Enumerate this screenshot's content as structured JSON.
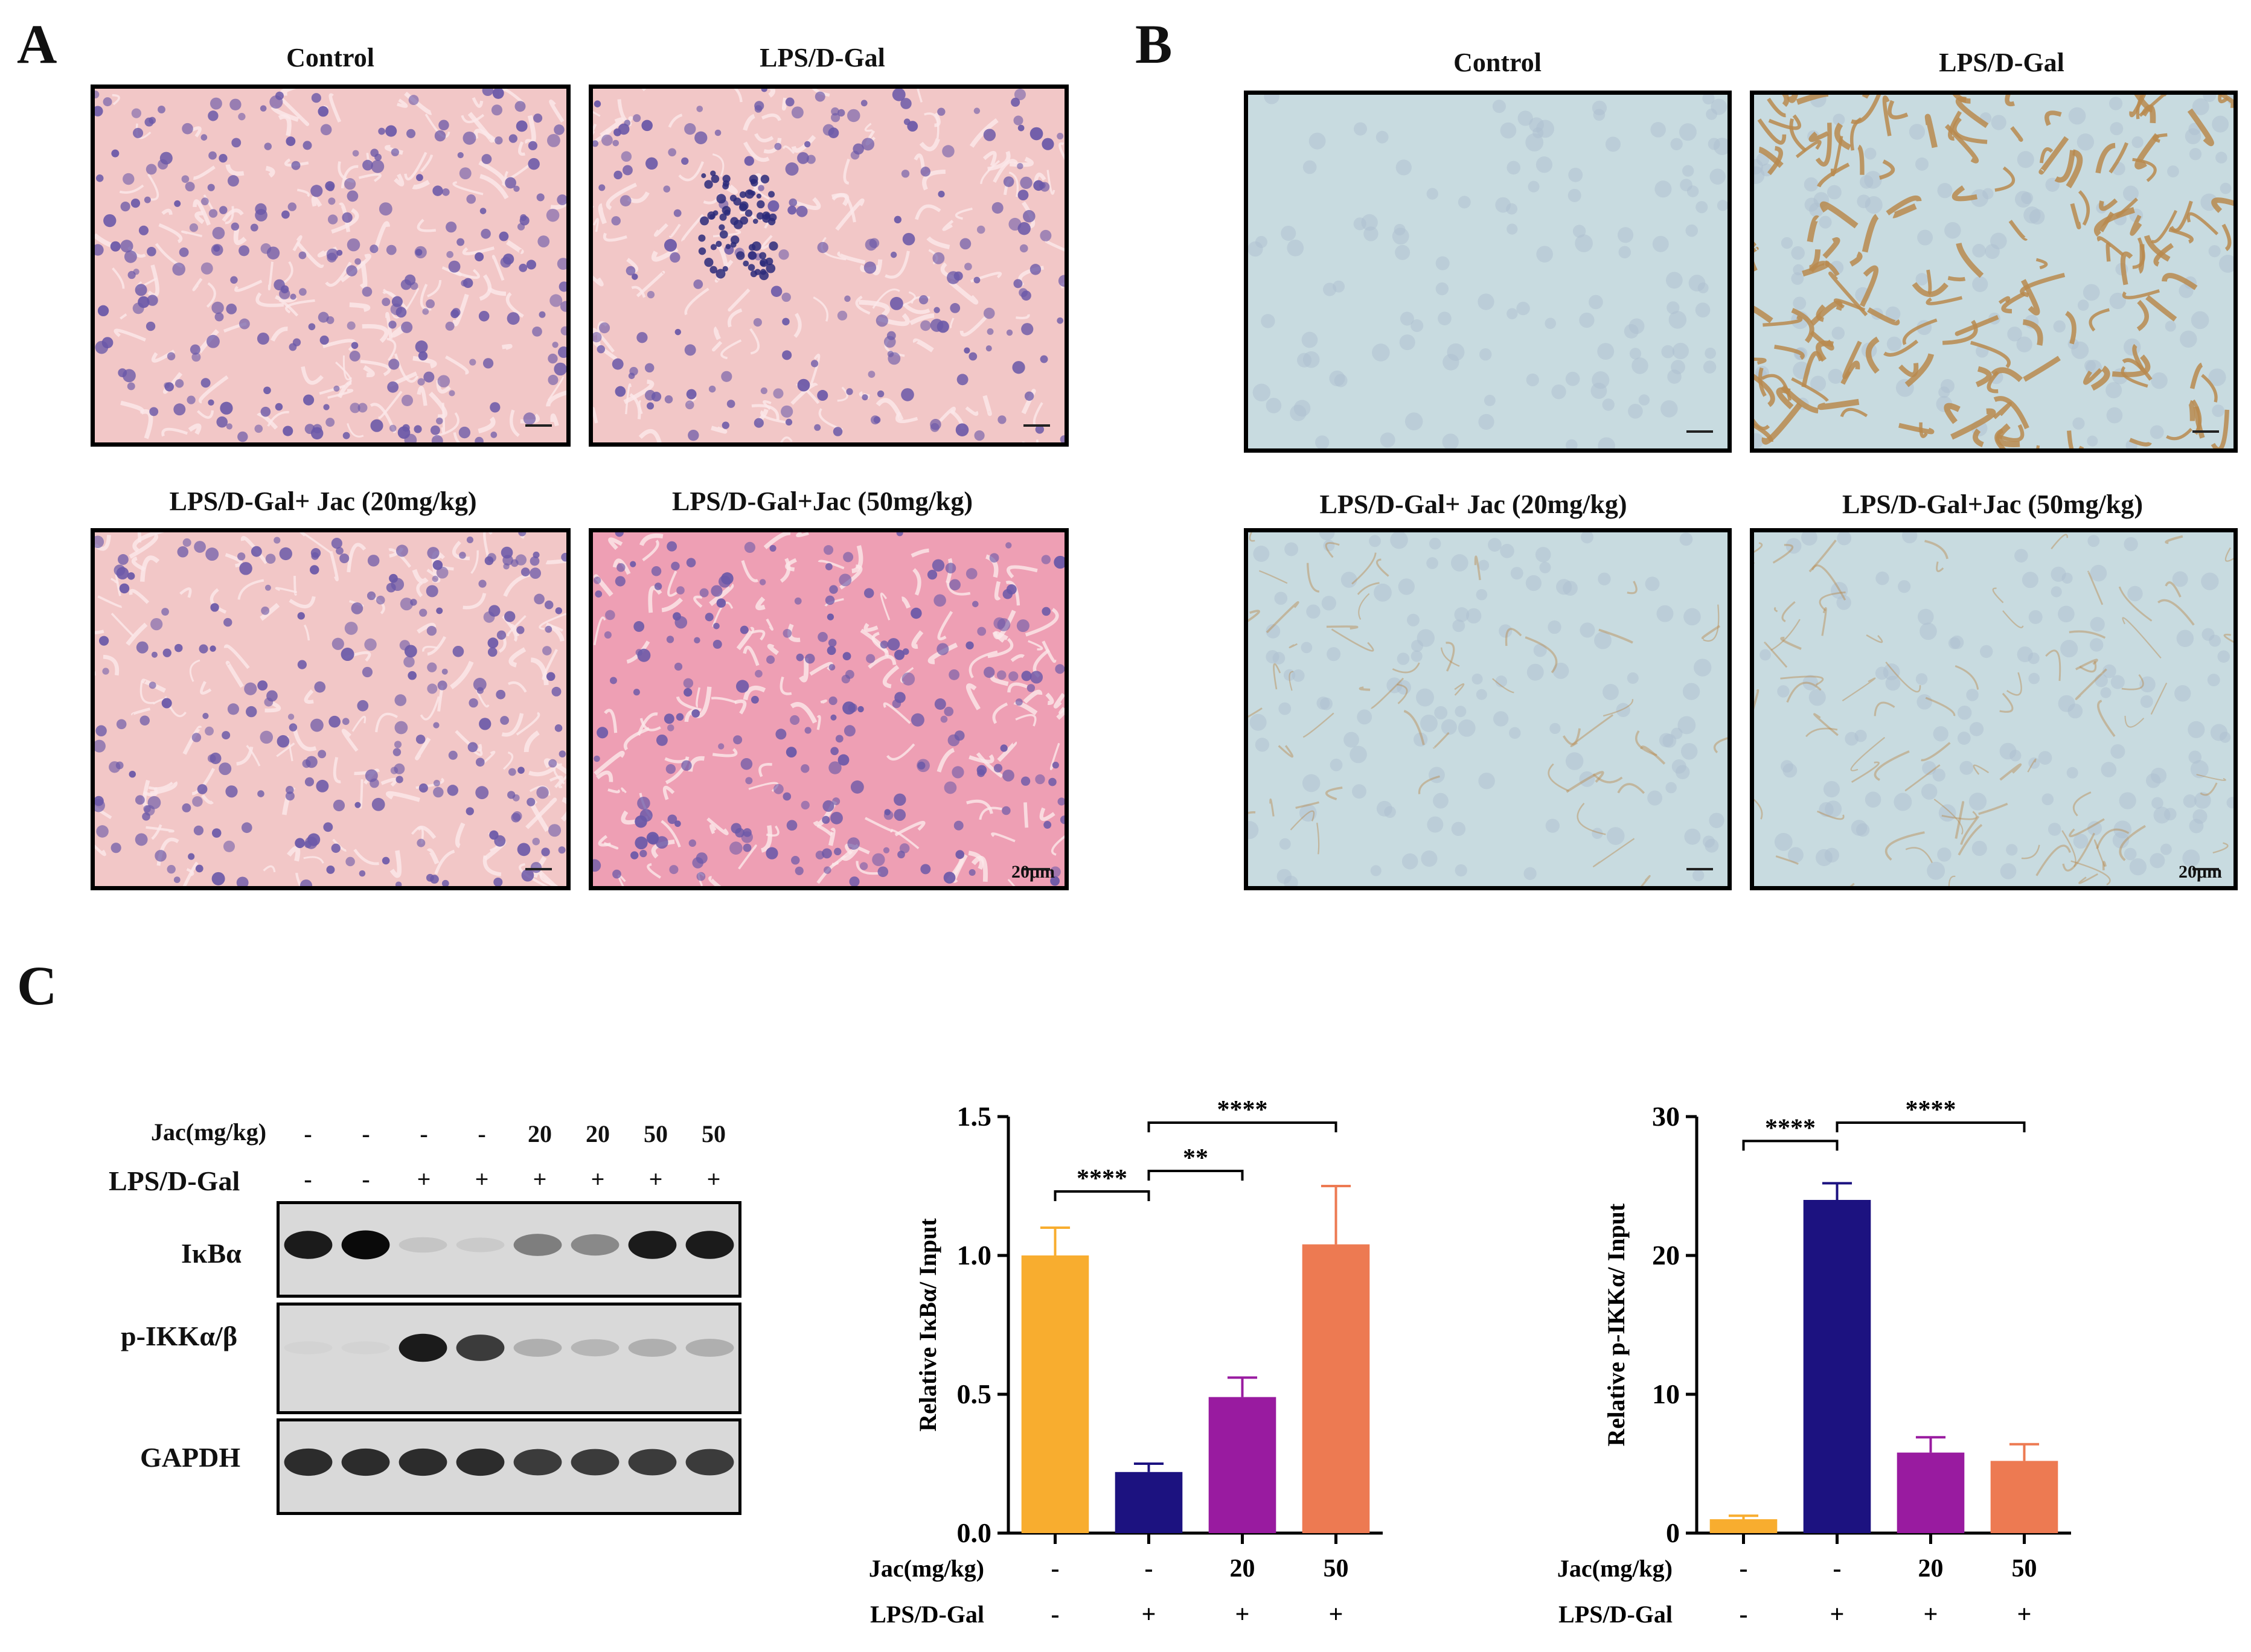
{
  "panels": {
    "A": {
      "letter": "A",
      "images": [
        {
          "caption": "Control"
        },
        {
          "caption": "LPS/D-Gal"
        },
        {
          "caption": "LPS/D-Gal+ Jac (20mg/kg)"
        },
        {
          "caption": "LPS/D-Gal+Jac (50mg/kg)",
          "scale_bar": "20μm"
        }
      ]
    },
    "B": {
      "letter": "B",
      "images": [
        {
          "caption": "Control"
        },
        {
          "caption": "LPS/D-Gal"
        },
        {
          "caption": "LPS/D-Gal+ Jac (20mg/kg)"
        },
        {
          "caption": "LPS/D-Gal+Jac (50mg/kg)",
          "scale_bar": "20μm"
        }
      ]
    },
    "C": {
      "letter": "C"
    }
  },
  "colors": {
    "he_tissue": "#f2c7c7",
    "he_nuclei": "#6a58a8",
    "ihc_bg": "#c8dbe0",
    "ihc_stain": "#b98a4e",
    "bar_orange": "#f8ad2f",
    "bar_navy": "#1c1280",
    "bar_purple": "#991ba0",
    "bar_coral": "#ed7a52"
  },
  "western_blot": {
    "jac_label": "Jac(mg/kg)",
    "lps_label": "LPS/D-Gal",
    "jac_values": [
      "-",
      "-",
      "-",
      "-",
      "20",
      "20",
      "50",
      "50"
    ],
    "lps_values": [
      "-",
      "-",
      "+",
      "+",
      "+",
      "+",
      "+",
      "+"
    ],
    "bands": [
      {
        "label": "IκBα",
        "intensity": [
          0.95,
          1.0,
          0.2,
          0.15,
          0.6,
          0.55,
          0.95,
          0.95
        ]
      },
      {
        "label": "p-IKKα/β",
        "intensity": [
          0.05,
          0.05,
          0.95,
          0.85,
          0.35,
          0.3,
          0.35,
          0.35
        ]
      },
      {
        "label": "GAPDH",
        "intensity": [
          0.9,
          0.9,
          0.9,
          0.9,
          0.85,
          0.85,
          0.85,
          0.85
        ]
      }
    ]
  },
  "chart_data": [
    {
      "type": "bar",
      "ylabel": "Relative IκBα/ Input",
      "ylim": [
        0,
        1.5
      ],
      "yticks": [
        "0.0",
        "0.5",
        "1.0",
        "1.5"
      ],
      "categories": [
        "1",
        "2",
        "3",
        "4"
      ],
      "values": [
        1.0,
        0.22,
        0.49,
        1.04
      ],
      "errors": [
        0.1,
        0.03,
        0.07,
        0.21
      ],
      "colors": [
        "#f8ad2f",
        "#1c1280",
        "#991ba0",
        "#ed7a52"
      ],
      "row_labels": [
        "Jac(mg/kg)",
        "LPS/D-Gal"
      ],
      "jac": [
        "-",
        "-",
        "20",
        "50"
      ],
      "lps": [
        "-",
        "+",
        "+",
        "+"
      ],
      "significance": [
        {
          "from": 0,
          "to": 1,
          "label": "****"
        },
        {
          "from": 1,
          "to": 2,
          "label": "**"
        },
        {
          "from": 1,
          "to": 3,
          "label": "****"
        }
      ]
    },
    {
      "type": "bar",
      "ylabel": "Relative p-IKKα/ Input",
      "ylim": [
        0,
        30
      ],
      "yticks": [
        "0",
        "10",
        "20",
        "30"
      ],
      "categories": [
        "1",
        "2",
        "3",
        "4"
      ],
      "values": [
        1.0,
        24.0,
        5.8,
        5.2
      ],
      "errors": [
        0.25,
        1.2,
        1.1,
        1.2
      ],
      "colors": [
        "#f8ad2f",
        "#1c1280",
        "#991ba0",
        "#ed7a52"
      ],
      "row_labels": [
        "Jac(mg/kg)",
        "LPS/D-Gal"
      ],
      "jac": [
        "-",
        "-",
        "20",
        "50"
      ],
      "lps": [
        "-",
        "+",
        "+",
        "+"
      ],
      "significance": [
        {
          "from": 0,
          "to": 1,
          "label": "****"
        },
        {
          "from": 1,
          "to": 3,
          "label": "****"
        }
      ]
    }
  ]
}
